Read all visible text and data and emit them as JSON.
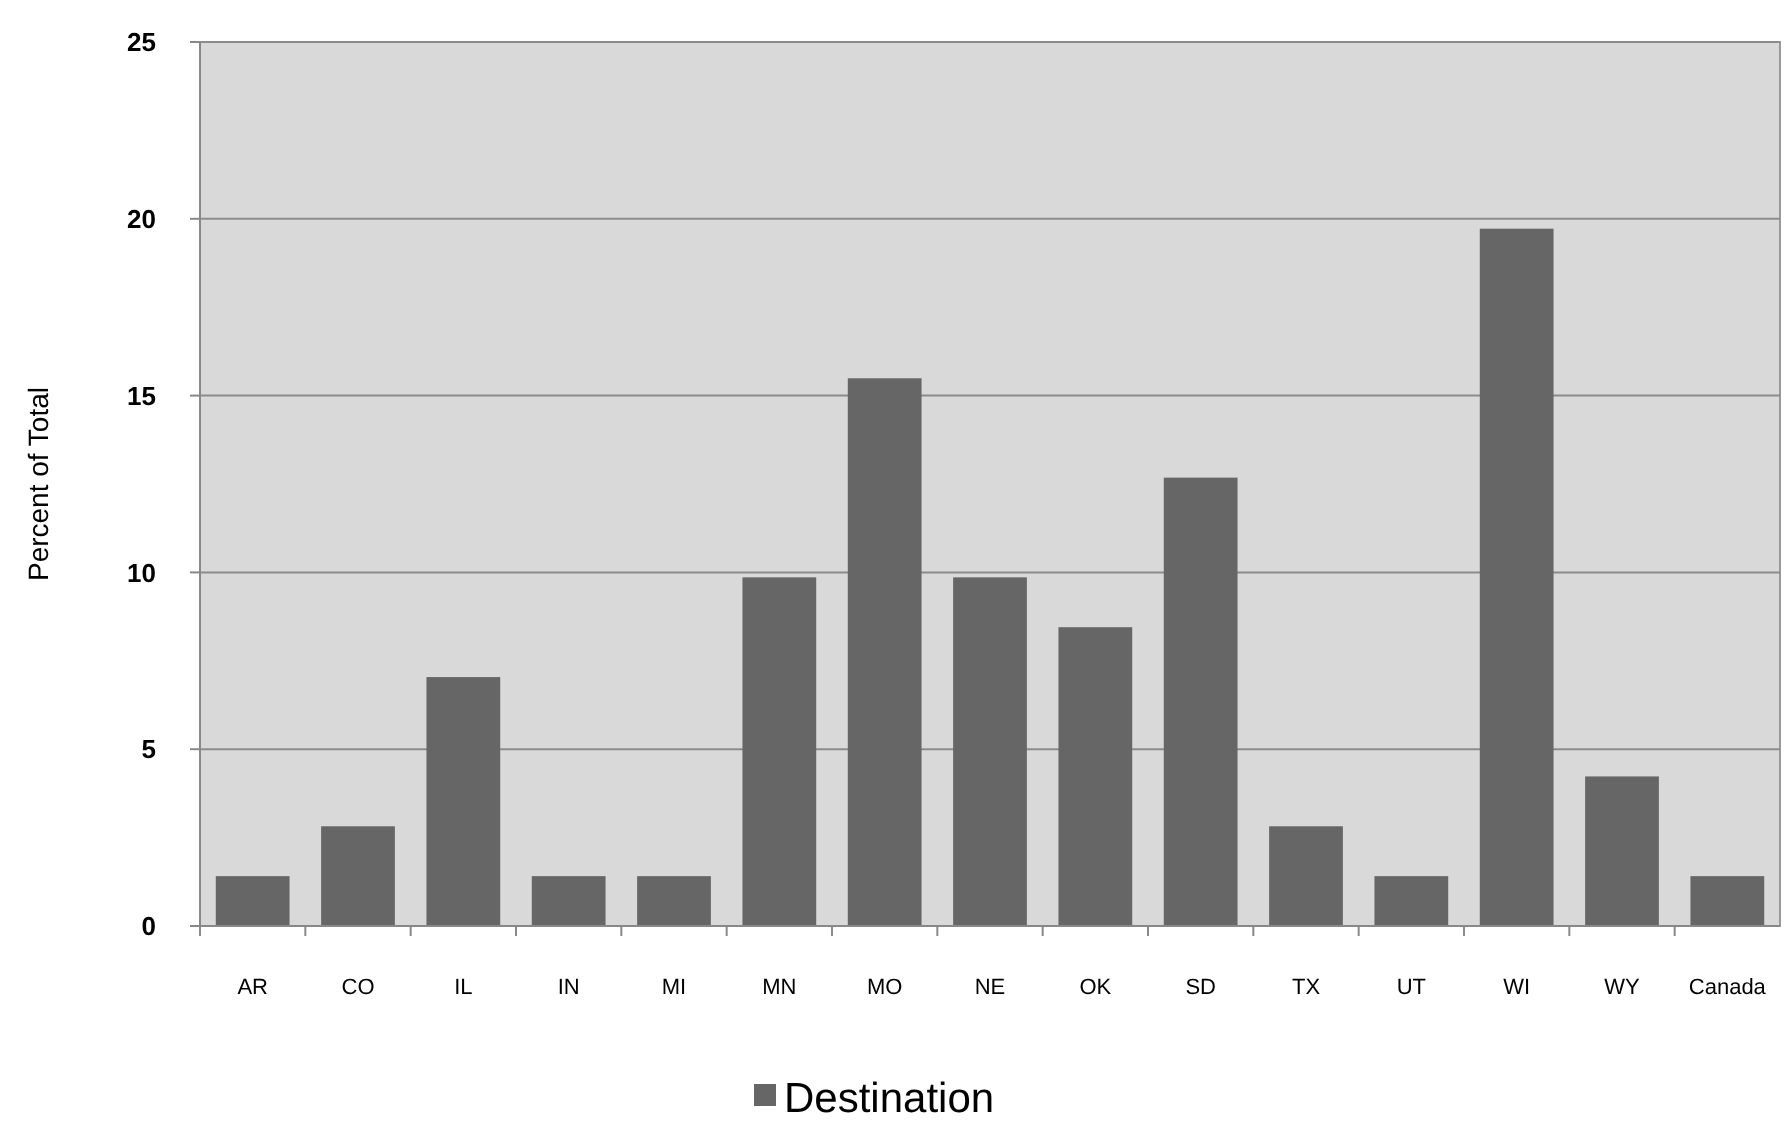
{
  "chart_data": {
    "type": "bar",
    "ylabel": "Percent of Total",
    "categories": [
      "AR",
      "CO",
      "IL",
      "IN",
      "MI",
      "MN",
      "MO",
      "NE",
      "OK",
      "SD",
      "TX",
      "UT",
      "WI",
      "WY",
      "Canada"
    ],
    "series": [
      {
        "name": "Destination",
        "color": "#666666",
        "values": [
          1.41,
          2.82,
          7.04,
          1.41,
          1.41,
          9.86,
          15.49,
          9.86,
          8.45,
          12.68,
          2.82,
          1.41,
          19.72,
          4.23,
          1.41
        ]
      }
    ],
    "ylim": [
      0,
      25
    ],
    "yticks": [
      0,
      5,
      10,
      15,
      20,
      25
    ],
    "grid": "y",
    "legend": "bottom"
  }
}
